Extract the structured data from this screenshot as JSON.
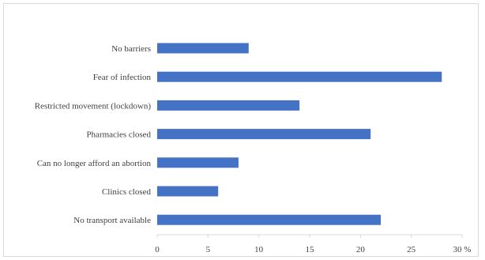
{
  "chart_data": {
    "type": "bar",
    "orientation": "horizontal",
    "categories": [
      "No barriers",
      "Fear of infection",
      "Restricted movement (lockdown)",
      "Pharmacies closed",
      "Can no longer afford an abortion",
      "Clinics closed",
      "No transport available"
    ],
    "values": [
      9,
      28,
      14,
      21,
      8,
      6,
      22
    ],
    "xlim": [
      0,
      30
    ],
    "xticks": [
      0,
      5,
      10,
      15,
      20,
      25,
      30
    ],
    "xtick_labels": [
      "0",
      "5",
      "10",
      "15",
      "20",
      "25",
      "30 %"
    ],
    "grid": false,
    "bar_color": "#4472C4",
    "title": "",
    "xlabel": "",
    "ylabel": ""
  }
}
